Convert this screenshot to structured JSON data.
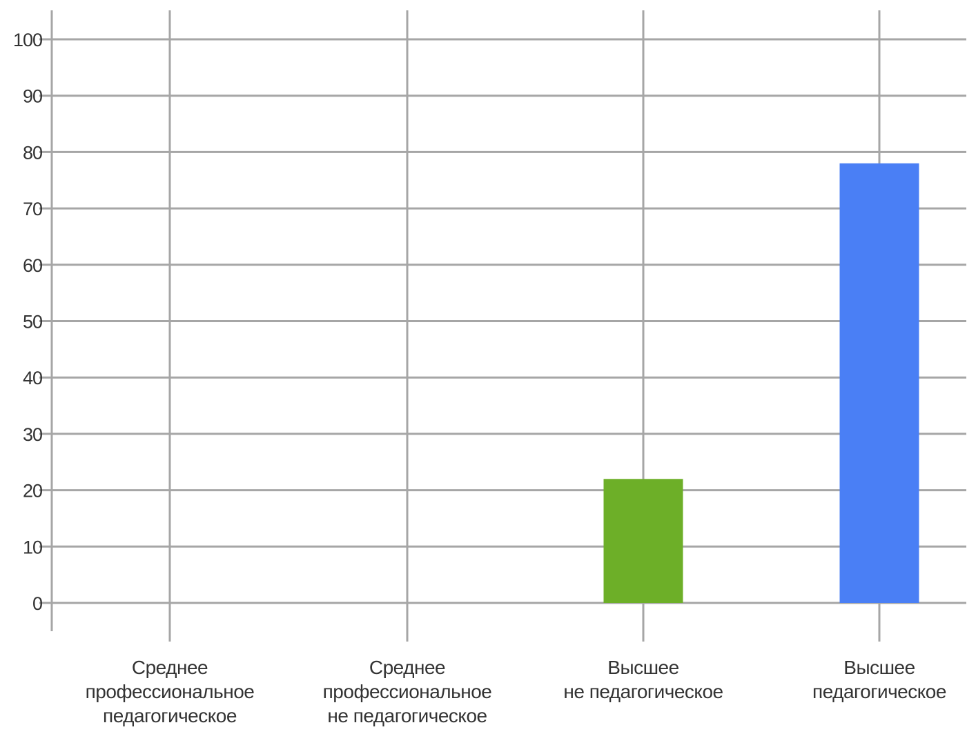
{
  "chart_data": {
    "type": "bar",
    "categories": [
      [
        "Среднее",
        "профессиональное",
        "педагогическое"
      ],
      [
        "Среднее",
        "профессиональное",
        "не педагогическое"
      ],
      [
        "Высшее",
        "не педагогическое"
      ],
      [
        "Высшее",
        "педагогическое"
      ]
    ],
    "values": [
      0,
      0,
      22,
      78
    ],
    "bar_colors": [
      "#6daf28",
      "#6daf28",
      "#6daf28",
      "#4a7ff5"
    ],
    "ylim": [
      0,
      100
    ],
    "yticks": [
      0,
      10,
      20,
      30,
      40,
      50,
      60,
      70,
      80,
      90,
      100
    ],
    "grid": true,
    "title": "",
    "xlabel": "",
    "ylabel": ""
  }
}
